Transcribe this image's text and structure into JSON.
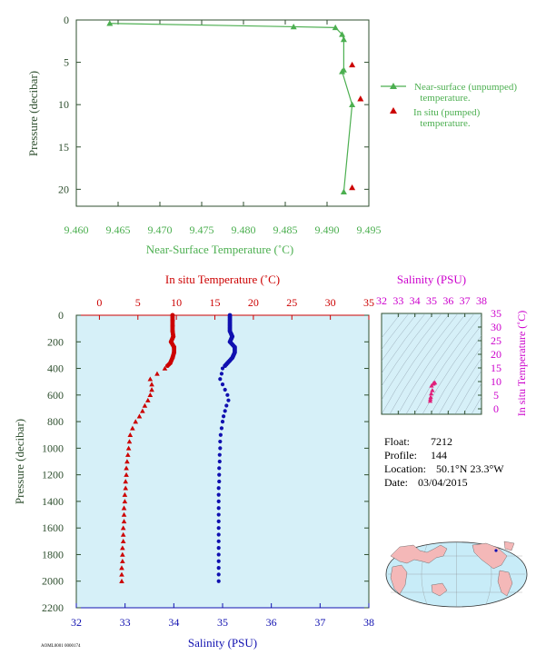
{
  "info": {
    "float_label": "Float:",
    "float_value": "7212",
    "profile_label": "Profile:",
    "profile_value": "144",
    "location_label": "Location:",
    "location_value": "50.1°N  23.3°W",
    "date_label": "Date:",
    "date_value": "03/04/2015",
    "footer_code": "AOML0001 0000174"
  },
  "colors": {
    "green": "#4caf50",
    "red": "#cc0000",
    "blue": "#1010b0",
    "magenta": "#cc00cc",
    "plot_bg": "#d6f0f8",
    "axis_dark": "#2f4f2f"
  },
  "chart_data": [
    {
      "id": "near_surface",
      "type": "line",
      "xlabel": "Near-Surface Temperature (˚C)",
      "ylabel": "Pressure (decibar)",
      "xlim": [
        9.46,
        9.495
      ],
      "ylim": [
        0,
        22
      ],
      "y_inverted": true,
      "xticks": [
        9.46,
        9.465,
        9.47,
        9.475,
        9.48,
        9.485,
        9.49,
        9.495
      ],
      "xtick_labels": [
        "9.460",
        "9.465",
        "9.470",
        "9.475",
        "9.480",
        "9.485",
        "9.490",
        "9.495"
      ],
      "yticks": [
        0,
        5,
        10,
        15,
        20
      ],
      "ytick_labels": [
        "0",
        "5",
        "10",
        "15",
        "20"
      ],
      "legend": [
        "Near-surface (unpumped)",
        "temperature.",
        "In situ (pumped)",
        "temperature."
      ],
      "legend_position": "right",
      "series": [
        {
          "name": "Near-surface (unpumped) temperature.",
          "x": [
            9.464,
            9.486,
            9.491,
            9.4918,
            9.492,
            9.492,
            9.4918,
            9.493,
            9.492
          ],
          "y": [
            0.4,
            0.8,
            0.9,
            1.7,
            2.3,
            5.9,
            6.1,
            10.0,
            20.3
          ]
        },
        {
          "name": "In situ (pumped) temperature.",
          "x": [
            9.493,
            9.494,
            9.493
          ],
          "y": [
            5.3,
            9.3,
            19.8
          ]
        }
      ]
    },
    {
      "id": "profile",
      "type": "scatter",
      "ylabel": "Pressure (decibar)",
      "ylim": [
        0,
        2200
      ],
      "y_inverted": true,
      "yticks": [
        0,
        200,
        400,
        600,
        800,
        1000,
        1200,
        1400,
        1600,
        1800,
        2000,
        2200
      ],
      "ytick_labels": [
        "0",
        "200",
        "400",
        "600",
        "800",
        "1000",
        "1200",
        "1400",
        "1600",
        "1800",
        "2000",
        "2200"
      ],
      "temp_axis": {
        "label": "In situ Temperature (˚C)",
        "lim": [
          -3,
          35
        ],
        "ticks": [
          0,
          5,
          10,
          15,
          20,
          25,
          30,
          35
        ],
        "tick_labels": [
          "0",
          "5",
          "10",
          "15",
          "20",
          "25",
          "30",
          "35"
        ]
      },
      "sal_axis": {
        "label": "Salinity (PSU)",
        "lim": [
          32,
          38
        ],
        "ticks": [
          32,
          33,
          34,
          35,
          36,
          37,
          38
        ],
        "tick_labels": [
          "32",
          "33",
          "34",
          "35",
          "36",
          "37",
          "38"
        ]
      },
      "series": [
        {
          "name": "Temperature",
          "pressure": [
            0,
            40,
            80,
            120,
            160,
            200,
            240,
            280,
            320,
            360,
            400,
            440,
            480,
            520,
            560,
            600,
            640,
            680,
            720,
            760,
            800,
            850,
            900,
            950,
            1000,
            1050,
            1100,
            1150,
            1200,
            1250,
            1300,
            1350,
            1400,
            1450,
            1500,
            1550,
            1600,
            1650,
            1700,
            1750,
            1800,
            1850,
            1900,
            1950,
            2000
          ],
          "values": [
            9.5,
            9.5,
            9.5,
            9.5,
            9.6,
            9.3,
            9.7,
            9.7,
            9.5,
            9.2,
            8.5,
            7.5,
            6.6,
            6.8,
            6.8,
            6.6,
            6.3,
            5.9,
            5.6,
            5.2,
            4.7,
            4.3,
            4.0,
            3.9,
            3.8,
            3.7,
            3.6,
            3.5,
            3.5,
            3.4,
            3.4,
            3.3,
            3.3,
            3.2,
            3.2,
            3.2,
            3.1,
            3.1,
            3.1,
            3.0,
            3.0,
            3.0,
            2.9,
            2.9,
            2.9
          ]
        },
        {
          "name": "Salinity",
          "pressure": [
            0,
            40,
            80,
            120,
            160,
            200,
            240,
            280,
            320,
            360,
            400,
            440,
            480,
            520,
            560,
            600,
            640,
            680,
            720,
            760,
            800,
            850,
            900,
            950,
            1000,
            1050,
            1100,
            1150,
            1200,
            1250,
            1300,
            1350,
            1400,
            1450,
            1500,
            1550,
            1600,
            1650,
            1700,
            1750,
            1800,
            1850,
            1900,
            1950,
            2000
          ],
          "values": [
            35.15,
            35.15,
            35.15,
            35.15,
            35.2,
            35.15,
            35.25,
            35.25,
            35.2,
            35.1,
            35.0,
            34.98,
            34.95,
            35.0,
            35.05,
            35.1,
            35.12,
            35.08,
            35.05,
            35.02,
            35.0,
            34.98,
            34.96,
            34.95,
            34.95,
            34.94,
            34.94,
            34.93,
            34.93,
            34.93,
            34.92,
            34.92,
            34.92,
            34.92,
            34.92,
            34.92,
            34.92,
            34.92,
            34.92,
            34.92,
            34.92,
            34.92,
            34.92,
            34.92,
            34.92
          ]
        }
      ]
    },
    {
      "id": "ts_diagram",
      "type": "scatter",
      "title": "Salinity (PSU)",
      "ylabel": "In situ Temperature (˚C)",
      "xlim": [
        32,
        38
      ],
      "ylim": [
        -2,
        35
      ],
      "xticks": [
        32,
        33,
        34,
        35,
        36,
        37,
        38
      ],
      "xtick_labels": [
        "32",
        "33",
        "34",
        "35",
        "36",
        "37",
        "38"
      ],
      "yticks": [
        0,
        5,
        10,
        15,
        20,
        25,
        30,
        35
      ],
      "ytick_labels": [
        "0",
        "5",
        "10",
        "15",
        "20",
        "25",
        "30",
        "35"
      ],
      "series": [
        {
          "name": "T-S",
          "x": [
            35.15,
            35.2,
            35.1,
            35.0,
            35.05,
            34.98,
            34.95,
            34.93,
            34.92
          ],
          "y": [
            9.5,
            9.6,
            9.2,
            8.5,
            6.8,
            5.6,
            4.3,
            3.6,
            2.9
          ]
        }
      ]
    }
  ]
}
